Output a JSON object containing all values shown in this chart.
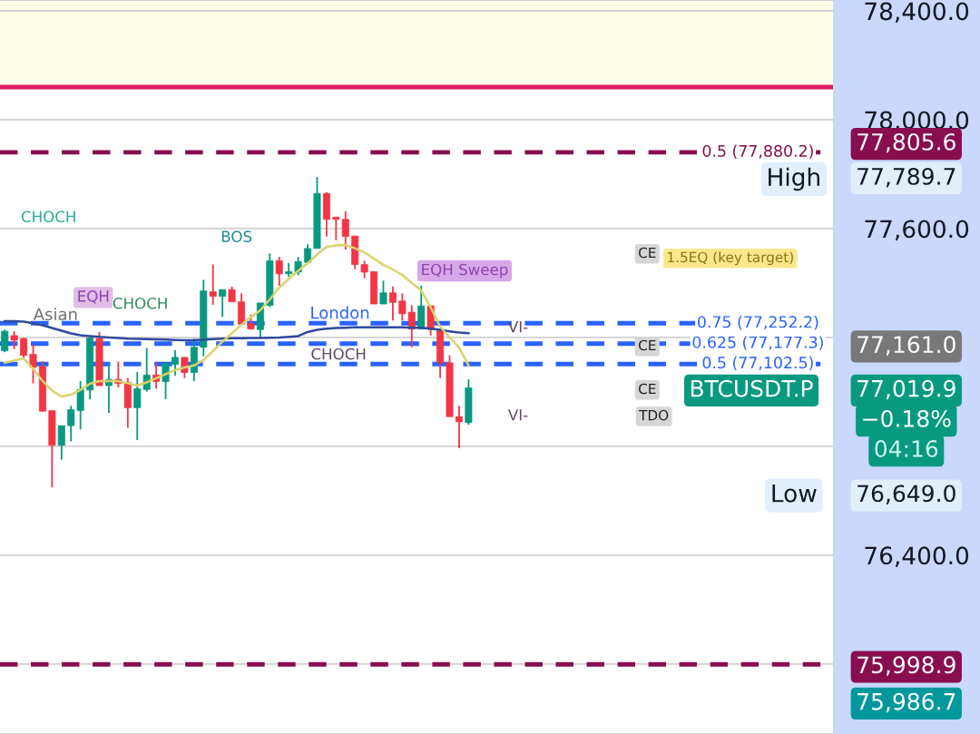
{
  "chart_data": {
    "type": "candlestick",
    "categories": [
      null,
      null,
      null,
      null,
      null,
      null,
      null,
      null,
      null,
      null,
      null,
      null,
      null,
      null,
      null,
      null,
      null,
      null,
      null,
      null,
      null,
      null,
      null,
      null,
      null,
      null,
      null,
      null,
      null,
      null,
      null,
      null,
      null,
      null,
      null,
      null,
      null,
      null,
      null,
      null,
      null,
      null,
      null,
      null,
      null,
      null,
      null,
      null,
      null,
      null,
      null,
      null,
      null,
      null,
      null,
      null,
      null,
      null,
      null,
      null,
      null,
      null,
      null,
      null,
      null,
      null,
      null,
      null,
      null,
      null,
      null,
      null,
      null,
      null,
      null,
      null,
      null,
      null,
      null,
      null,
      null,
      null,
      null,
      null,
      null,
      null,
      null,
      null
    ],
    "ohlc": [
      [
        77151,
        77229,
        77146,
        77223
      ],
      [
        77207,
        77223,
        77157,
        77190
      ],
      [
        77196,
        77198,
        77118,
        77134
      ],
      [
        77138,
        77173,
        77031,
        77090
      ],
      [
        77093,
        77112,
        76929,
        76929
      ],
      [
        76931,
        76931,
        76649,
        76804
      ],
      [
        76804,
        76876,
        76751,
        76876
      ],
      [
        76876,
        76949,
        76818,
        76935
      ],
      [
        76931,
        77040,
        76862,
        77009
      ],
      [
        77007,
        77201,
        76973,
        77198
      ],
      [
        77196,
        77220,
        77023,
        77023
      ],
      [
        77023,
        77107,
        76923,
        77046
      ],
      [
        77046,
        77112,
        77016,
        77031
      ],
      [
        77034,
        77051,
        76868,
        76942
      ],
      [
        76942,
        77073,
        76823,
        77012
      ],
      [
        77009,
        77162,
        77001,
        77062
      ],
      [
        77062,
        77107,
        77012,
        77038
      ],
      [
        77038,
        77104,
        76973,
        77104
      ],
      [
        77101,
        77153,
        77060,
        77127
      ],
      [
        77127,
        77127,
        77051,
        77071
      ],
      [
        77071,
        77196,
        77040,
        77164
      ],
      [
        77164,
        77412,
        77131,
        77371
      ],
      [
        77368,
        77468,
        77320,
        77351
      ],
      [
        77351,
        77376,
        77276,
        77376
      ],
      [
        77376,
        77387,
        77331,
        77331
      ],
      [
        77331,
        77362,
        77249,
        77249
      ],
      [
        77251,
        77284,
        77231,
        77231
      ],
      [
        77229,
        77327,
        77198,
        77327
      ],
      [
        77318,
        77509,
        77312,
        77482
      ],
      [
        77482,
        77496,
        77390,
        77434
      ],
      [
        77434,
        77473,
        77423,
        77442
      ],
      [
        77440,
        77496,
        77429,
        77479
      ],
      [
        77476,
        77542,
        77473,
        77527
      ],
      [
        77527,
        77790,
        77527,
        77729
      ],
      [
        77729,
        77734,
        77571,
        77634
      ],
      [
        77642,
        77642,
        77557,
        77634
      ],
      [
        77634,
        77664,
        77523,
        77571
      ],
      [
        77573,
        77573,
        77451,
        77468
      ],
      [
        77468,
        77482,
        77418,
        77440
      ],
      [
        77442,
        77442,
        77323,
        77323
      ],
      [
        77323,
        77409,
        77323,
        77364
      ],
      [
        77364,
        77387,
        77262,
        77329
      ],
      [
        77334,
        77362,
        77262,
        77287
      ],
      [
        77293,
        77318,
        77164,
        77231
      ],
      [
        77231,
        77390,
        77231,
        77316
      ],
      [
        77316,
        77316,
        77207,
        77229
      ],
      [
        77231,
        77231,
        77051,
        77107
      ],
      [
        77107,
        77134,
        76909,
        76909
      ],
      [
        76909,
        76949,
        76793,
        76890
      ],
      [
        76887,
        77046,
        76879,
        77015
      ],
      null,
      null,
      null,
      null,
      null,
      null,
      null,
      null,
      null,
      null,
      null,
      null,
      null,
      null,
      null,
      null,
      null,
      null,
      null,
      null,
      null,
      null,
      null,
      null,
      null,
      null,
      null,
      null,
      null,
      null,
      null,
      null,
      null,
      null,
      null,
      null,
      null,
      null
    ],
    "series": [
      {
        "type": "line",
        "color": "#2e4a9e",
        "values": [
          77260,
          77260,
          77258,
          77252,
          77245,
          77235,
          77225,
          77215,
          77208,
          77205,
          77202,
          77200,
          77198,
          77196,
          77195,
          77194,
          77193,
          77192,
          77191,
          77190,
          77190,
          77192,
          77194,
          77196,
          77197,
          77197,
          77198,
          77198,
          77199,
          77200,
          77202,
          77205,
          77220,
          77228,
          77232,
          77235,
          77236,
          77237,
          77237,
          77237,
          77237,
          77237,
          77237,
          77236,
          77236,
          77232,
          77228,
          77222,
          77218,
          77216,
          null,
          null,
          null,
          null,
          null,
          null,
          null,
          null,
          null,
          null,
          null,
          null,
          null,
          null,
          null,
          null,
          null,
          null,
          null,
          null,
          null,
          null,
          null,
          null,
          null,
          null,
          null,
          null,
          null,
          null,
          null,
          null,
          null,
          null,
          null,
          null,
          null,
          null
        ]
      },
      {
        "type": "line",
        "color": "#d9d36a",
        "values": [
          77107,
          77115,
          77123,
          77085,
          77040,
          77005,
          76983,
          76990,
          77007,
          77030,
          77040,
          77040,
          77040,
          77032,
          77023,
          77035,
          77050,
          77065,
          77080,
          77090,
          77097,
          77117,
          77150,
          77185,
          77215,
          77247,
          77275,
          77300,
          77340,
          77383,
          77415,
          77445,
          77473,
          77505,
          77533,
          77538,
          77540,
          77528,
          77513,
          77490,
          77467,
          77450,
          77430,
          77400,
          77373,
          77310,
          77240,
          77200,
          77163,
          77097,
          null,
          null,
          null,
          null,
          null,
          null,
          null,
          null,
          null,
          null,
          null,
          null,
          null,
          null,
          null,
          null,
          null,
          null,
          null,
          null,
          null,
          null,
          null,
          null,
          null,
          null,
          null,
          null,
          null,
          null,
          null,
          null,
          null,
          null,
          null,
          null,
          null,
          null
        ]
      }
    ],
    "ylim": [
      75743,
      78440
    ],
    "yticks": [
      {
        "value": 78400,
        "label": "78,400.0"
      },
      {
        "value": 78000,
        "label": "78,000.0"
      },
      {
        "value": 77600,
        "label": "77,600.0"
      },
      {
        "value": 77200,
        "label": null
      },
      {
        "value": 76800,
        "label": null
      },
      {
        "value": 76400,
        "label": "76,400.0"
      },
      {
        "value": 76000,
        "label": null
      }
    ],
    "grid": "y",
    "bands": [
      {
        "axis": "y",
        "from": 78120,
        "to": 78440,
        "color": "#fffde6"
      }
    ],
    "ref_lines": [
      {
        "axis": "y",
        "value": 78120,
        "color": "#d81b60",
        "line_style": "solid"
      },
      {
        "axis": "y",
        "value": 77880.2,
        "label": "0.5 (77,880.2)",
        "color": "#880e4f",
        "line_style": "dashed"
      },
      {
        "axis": "y",
        "value": 77252.2,
        "label": "0.75 (77,252.2)",
        "color": "#2962ff",
        "line_style": "dashed"
      },
      {
        "axis": "y",
        "value": 77177.3,
        "label": "0.625 (77,177.3)",
        "color": "#2962ff",
        "line_style": "dashed"
      },
      {
        "axis": "y",
        "value": 77102.5,
        "label": "0.5 (77,102.5)",
        "color": "#2962ff",
        "line_style": "dashed"
      },
      {
        "axis": "y",
        "value": 75998.9,
        "color": "#880e4f",
        "line_style": "dashed"
      }
    ],
    "annotations": [
      "CHOCH",
      "BOS",
      {
        "text": "EQH",
        "y": 77347
      },
      "CHOCH",
      "Asian",
      "London",
      "EQH Sweep",
      "CHOCH",
      {
        "text": "CE",
        "y": 77507
      },
      "1.5EQ (key target)",
      {
        "text": "CE",
        "y": 77167
      },
      {
        "text": "CE",
        "y": 77007
      },
      {
        "text": "TDO",
        "y": 76910
      },
      "VI-",
      "VI-",
      "High",
      "Low",
      "77,805.6",
      "77,789.7",
      "77,161.0",
      "BTCUSDT.P",
      "77,019.9",
      "−0.18%",
      "04:16",
      "76,649.0",
      "75,998.9",
      "75,986.7"
    ]
  }
}
